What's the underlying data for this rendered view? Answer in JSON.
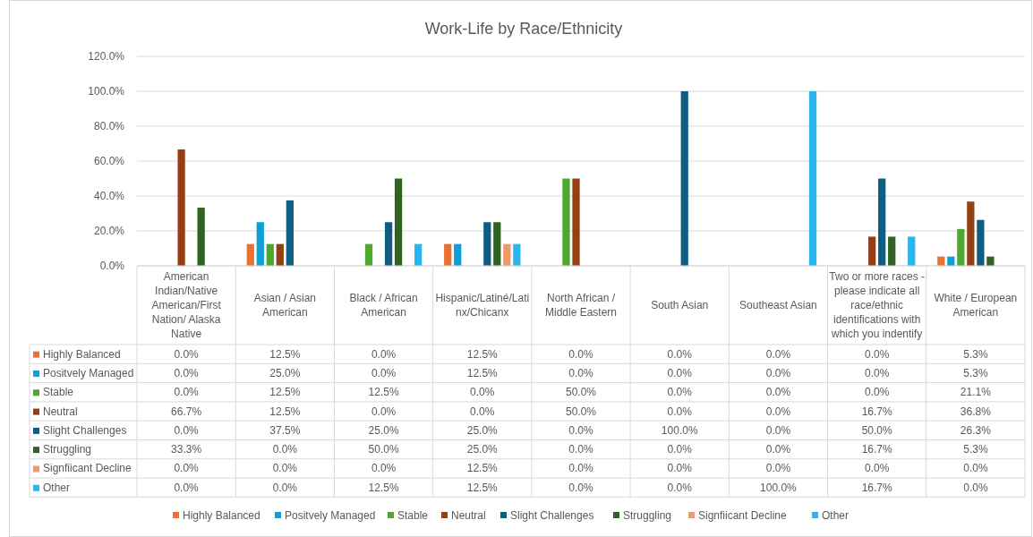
{
  "chart_data": {
    "type": "bar",
    "title": "Work-Life by Race/Ethnicity",
    "categories": [
      "American Indian/Native American/First Nation/ Alaska Native",
      "Asian / Asian American",
      "Black / African American",
      "Hispanic/Latiné/Latinx/Chicanx",
      "North African / Middle Eastern",
      "South Asian",
      "Southeast Asian",
      "Two or more races - please indicate all race/ethnic identifications with which you indentify",
      "White / European American"
    ],
    "series": [
      {
        "name": "Highly Balanced",
        "color": "#e97132",
        "values": [
          0,
          12.5,
          0,
          12.5,
          0,
          0,
          0,
          0,
          5.3
        ],
        "value_labels": [
          "0.0%",
          "12.5%",
          "0.0%",
          "12.5%",
          "0.0%",
          "0.0%",
          "0.0%",
          "0.0%",
          "5.3%"
        ]
      },
      {
        "name": "Positvely Managed",
        "color": "#0f9ed5",
        "values": [
          0,
          25,
          0,
          12.5,
          0,
          0,
          0,
          0,
          5.3
        ],
        "value_labels": [
          "0.0%",
          "25.0%",
          "0.0%",
          "12.5%",
          "0.0%",
          "0.0%",
          "0.0%",
          "0.0%",
          "5.3%"
        ]
      },
      {
        "name": "Stable",
        "color": "#4ea72e",
        "values": [
          0,
          12.5,
          12.5,
          0,
          50,
          0,
          0,
          0,
          21.1
        ],
        "value_labels": [
          "0.0%",
          "12.5%",
          "12.5%",
          "0.0%",
          "50.0%",
          "0.0%",
          "0.0%",
          "0.0%",
          "21.1%"
        ]
      },
      {
        "name": "Neutral",
        "color": "#973f14",
        "values": [
          66.7,
          12.5,
          0,
          0,
          50,
          0,
          0,
          16.7,
          36.8
        ],
        "value_labels": [
          "66.7%",
          "12.5%",
          "0.0%",
          "0.0%",
          "50.0%",
          "0.0%",
          "0.0%",
          "16.7%",
          "36.8%"
        ]
      },
      {
        "name": "Slight Challenges",
        "color": "#0f5e82",
        "values": [
          0,
          37.5,
          25,
          25,
          0,
          100,
          0,
          50,
          26.3
        ],
        "value_labels": [
          "0.0%",
          "37.5%",
          "25.0%",
          "25.0%",
          "0.0%",
          "100.0%",
          "0.0%",
          "50.0%",
          "26.3%"
        ]
      },
      {
        "name": "Struggling",
        "color": "#2f6320",
        "values": [
          33.3,
          0,
          50,
          25,
          0,
          0,
          0,
          16.7,
          5.3
        ],
        "value_labels": [
          "33.3%",
          "0.0%",
          "50.0%",
          "25.0%",
          "0.0%",
          "0.0%",
          "0.0%",
          "16.7%",
          "5.3%"
        ]
      },
      {
        "name": "Signfiicant Decline",
        "color": "#f09a6b",
        "values": [
          0,
          0,
          0,
          12.5,
          0,
          0,
          0,
          0,
          0
        ],
        "value_labels": [
          "0.0%",
          "0.0%",
          "0.0%",
          "12.5%",
          "0.0%",
          "0.0%",
          "0.0%",
          "0.0%",
          "0.0%"
        ]
      },
      {
        "name": "Other",
        "color": "#29b6ee",
        "values": [
          0,
          0,
          12.5,
          12.5,
          0,
          0,
          100,
          16.7,
          0
        ],
        "value_labels": [
          "0.0%",
          "0.0%",
          "12.5%",
          "12.5%",
          "0.0%",
          "0.0%",
          "100.0%",
          "16.7%",
          "0.0%"
        ]
      }
    ],
    "ylim": [
      0,
      120
    ],
    "yticks": [
      {
        "value": 0,
        "label": "0.0%"
      },
      {
        "value": 20,
        "label": "20.0%"
      },
      {
        "value": 40,
        "label": "40.0%"
      },
      {
        "value": 60,
        "label": "60.0%"
      },
      {
        "value": 80,
        "label": "80.0%"
      },
      {
        "value": 100,
        "label": "100.0%"
      },
      {
        "value": 120,
        "label": "120.0%"
      }
    ],
    "grid": "y",
    "legend": "bottom"
  }
}
